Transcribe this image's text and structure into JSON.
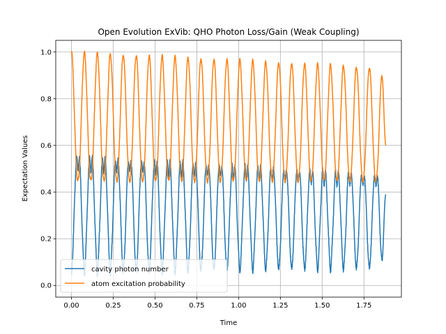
{
  "chart_data": {
    "type": "line",
    "title": "Open Evolution ExVib: QHO Photon Loss/Gain (Weak Coupling)",
    "xlabel": "Time",
    "ylabel": "Expectation Values",
    "xlim": [
      -0.094,
      1.974
    ],
    "ylim": [
      -0.05,
      1.05
    ],
    "xticks": [
      0.0,
      0.25,
      0.5,
      0.75,
      1.0,
      1.25,
      1.5,
      1.75
    ],
    "xtick_labels": [
      "0.00",
      "0.25",
      "0.50",
      "0.75",
      "1.00",
      "1.25",
      "1.50",
      "1.75"
    ],
    "yticks": [
      0.0,
      0.2,
      0.4,
      0.6,
      0.8,
      1.0
    ],
    "ytick_labels": [
      "0.0",
      "0.2",
      "0.4",
      "0.6",
      "0.8",
      "1.0"
    ],
    "grid": true,
    "legend_position": "lower-left",
    "t_max": 1.88,
    "period": 0.0775,
    "series": [
      {
        "name": "cavity photon number",
        "color": "#1f77b4",
        "amplitude_start": 0.64,
        "amplitude_end": 0.55,
        "min_start": 0.02,
        "min_end": 0.04,
        "dip_value": 0.53,
        "end_value": 0.39
      },
      {
        "name": "atom excitation probability",
        "color": "#ff7f0e",
        "amplitude_start": 1.0,
        "amplitude_end": 0.93,
        "min_start": 0.45,
        "min_end": 0.45,
        "end_value": 0.6
      }
    ]
  }
}
